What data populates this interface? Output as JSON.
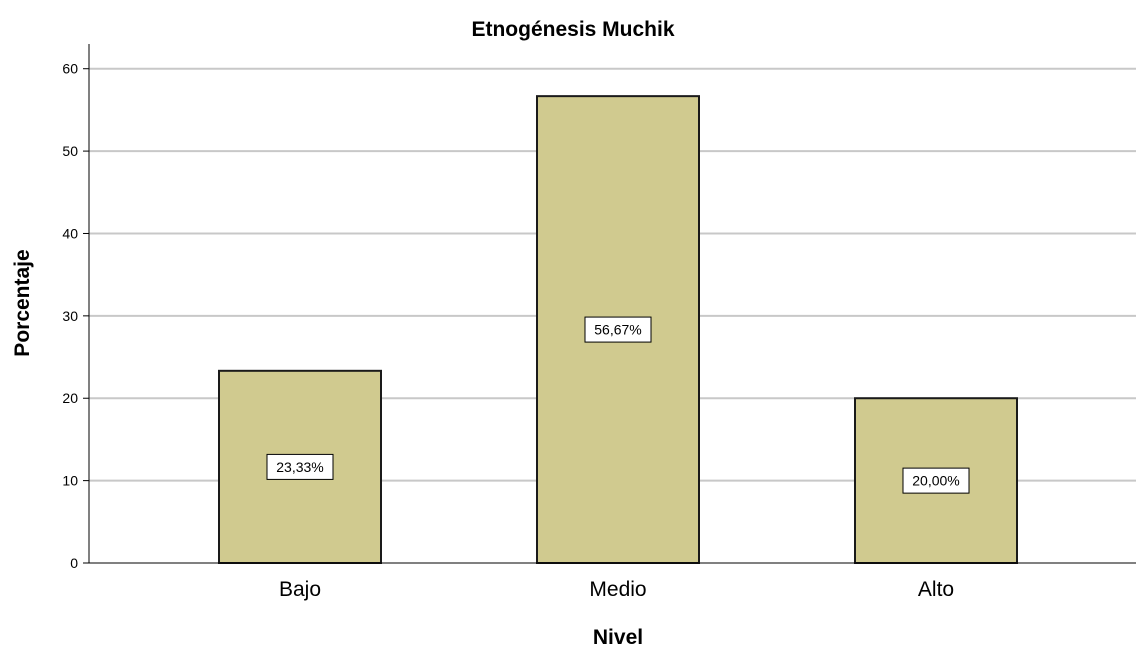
{
  "chart_data": {
    "type": "bar",
    "title": "Etnogénesis Muchik",
    "xlabel": "Nivel",
    "ylabel": "Porcentaje",
    "categories": [
      "Bajo",
      "Medio",
      "Alto"
    ],
    "values": [
      23.33,
      56.67,
      20.0
    ],
    "data_labels": [
      "23,33%",
      "56,67%",
      "20,00%"
    ],
    "ylim": [
      0,
      63
    ],
    "yticks": [
      0,
      10,
      20,
      30,
      40,
      50,
      60
    ],
    "grid": true,
    "legend": "none",
    "bar_color": "#D0CA8F",
    "bar_edge_color": "#1a1a1a",
    "grid_color": "#c8c8c8"
  }
}
